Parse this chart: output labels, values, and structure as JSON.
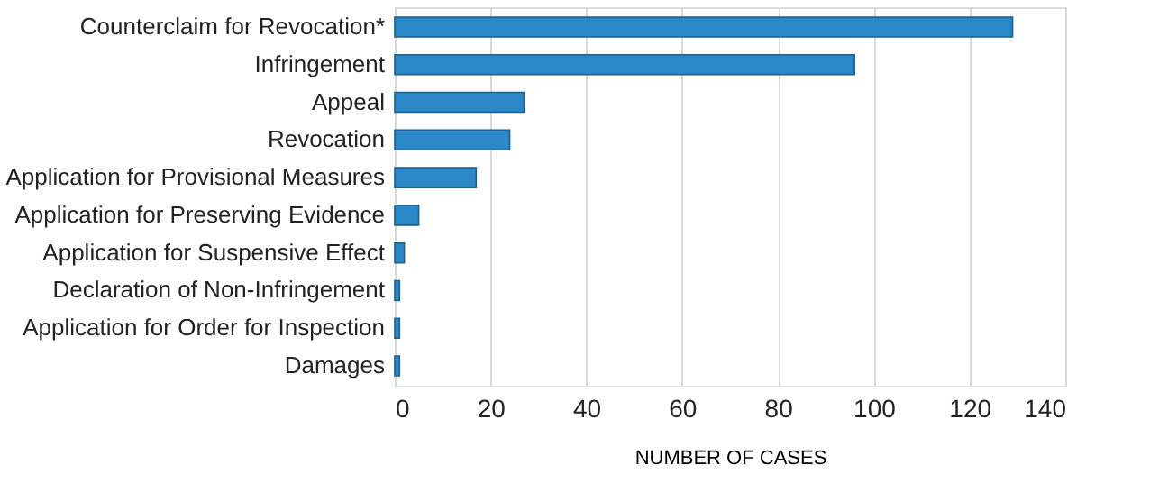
{
  "chart_data": {
    "type": "bar",
    "orientation": "horizontal",
    "xlabel": "NUMBER OF CASES",
    "categories": [
      "Counterclaim for Revocation*",
      "Infringement",
      "Appeal",
      "Revocation",
      "Application for Provisional Measures",
      "Application for Preserving Evidence",
      "Application for Suspensive Effect",
      "Declaration of Non-Infringement",
      "Application for Order for Inspection",
      "Damages"
    ],
    "values": [
      129,
      96,
      27,
      24,
      17,
      5,
      2,
      1,
      1,
      1
    ],
    "color": "#2a88c8",
    "xlim": [
      0,
      140
    ],
    "xticks": [
      0,
      20,
      40,
      60,
      80,
      100,
      120,
      140
    ],
    "grid": "x"
  }
}
